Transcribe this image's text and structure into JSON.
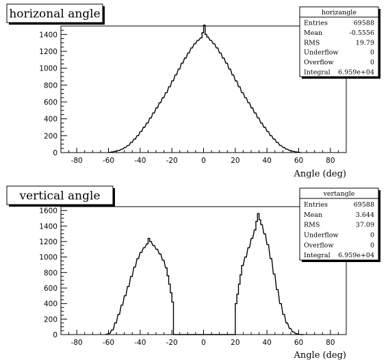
{
  "chart_data": [
    {
      "type": "bar",
      "title": "horizonal angle",
      "xlabel": "Angle (deg)",
      "ylabel": "",
      "xlim": [
        -90,
        90
      ],
      "ylim": [
        0,
        1500
      ],
      "x_ticks": [
        -80,
        -60,
        -40,
        -20,
        0,
        20,
        40,
        60,
        80
      ],
      "y_ticks": [
        0,
        200,
        400,
        600,
        800,
        1000,
        1200,
        1400
      ],
      "bin_width": 1,
      "bins": [
        [
          -60,
          2
        ],
        [
          -58,
          8
        ],
        [
          -56,
          15
        ],
        [
          -54,
          25
        ],
        [
          -52,
          40
        ],
        [
          -50,
          60
        ],
        [
          -48,
          85
        ],
        [
          -46,
          120
        ],
        [
          -44,
          160
        ],
        [
          -42,
          200
        ],
        [
          -40,
          250
        ],
        [
          -38,
          300
        ],
        [
          -36,
          350
        ],
        [
          -34,
          410
        ],
        [
          -32,
          470
        ],
        [
          -30,
          530
        ],
        [
          -28,
          590
        ],
        [
          -26,
          650
        ],
        [
          -24,
          710
        ],
        [
          -22,
          780
        ],
        [
          -20,
          850
        ],
        [
          -18,
          920
        ],
        [
          -16,
          990
        ],
        [
          -14,
          1060
        ],
        [
          -12,
          1120
        ],
        [
          -10,
          1180
        ],
        [
          -8,
          1240
        ],
        [
          -6,
          1290
        ],
        [
          -4,
          1330
        ],
        [
          -2,
          1360
        ],
        [
          -1,
          1420
        ],
        [
          0,
          1510
        ],
        [
          1,
          1400
        ],
        [
          2,
          1370
        ],
        [
          4,
          1330
        ],
        [
          6,
          1290
        ],
        [
          8,
          1240
        ],
        [
          10,
          1180
        ],
        [
          12,
          1120
        ],
        [
          14,
          1060
        ],
        [
          16,
          990
        ],
        [
          18,
          920
        ],
        [
          20,
          850
        ],
        [
          22,
          780
        ],
        [
          24,
          710
        ],
        [
          26,
          650
        ],
        [
          28,
          590
        ],
        [
          30,
          530
        ],
        [
          32,
          470
        ],
        [
          34,
          410
        ],
        [
          36,
          350
        ],
        [
          38,
          300
        ],
        [
          40,
          250
        ],
        [
          42,
          200
        ],
        [
          44,
          160
        ],
        [
          46,
          120
        ],
        [
          48,
          85
        ],
        [
          50,
          60
        ],
        [
          52,
          40
        ],
        [
          54,
          25
        ],
        [
          56,
          15
        ],
        [
          58,
          8
        ],
        [
          60,
          2
        ]
      ],
      "stats": {
        "name": "horizangle",
        "rows": [
          [
            "Entries",
            "69588"
          ],
          [
            "Mean",
            "-0.5556"
          ],
          [
            "RMS",
            "19.79"
          ],
          [
            "Underflow",
            "0"
          ],
          [
            "Overflow",
            "0"
          ],
          [
            "Integral",
            "6.959e+04"
          ]
        ]
      }
    },
    {
      "type": "bar",
      "title": "vertical angle",
      "xlabel": "Angle (deg)",
      "ylabel": "",
      "xlim": [
        -90,
        90
      ],
      "ylim": [
        0,
        1650
      ],
      "x_ticks": [
        -80,
        -60,
        -40,
        -20,
        0,
        20,
        40,
        60,
        80
      ],
      "y_ticks": [
        0,
        200,
        400,
        600,
        800,
        1000,
        1200,
        1400,
        1600
      ],
      "bin_width": 1,
      "bins": [
        [
          -62,
          2
        ],
        [
          -60,
          15
        ],
        [
          -58,
          60
        ],
        [
          -56,
          150
        ],
        [
          -54,
          260
        ],
        [
          -52,
          380
        ],
        [
          -50,
          500
        ],
        [
          -48,
          620
        ],
        [
          -46,
          750
        ],
        [
          -44,
          870
        ],
        [
          -42,
          980
        ],
        [
          -40,
          1060
        ],
        [
          -38,
          1120
        ],
        [
          -36,
          1170
        ],
        [
          -35,
          1240
        ],
        [
          -34,
          1200
        ],
        [
          -32,
          1150
        ],
        [
          -30,
          1100
        ],
        [
          -28,
          1040
        ],
        [
          -26,
          960
        ],
        [
          -24,
          860
        ],
        [
          -23,
          760
        ],
        [
          -22,
          650
        ],
        [
          -21,
          540
        ],
        [
          -20,
          420
        ],
        [
          -19,
          0
        ],
        [
          19,
          0
        ],
        [
          20,
          400
        ],
        [
          21,
          520
        ],
        [
          22,
          650
        ],
        [
          23,
          770
        ],
        [
          24,
          890
        ],
        [
          26,
          1000
        ],
        [
          28,
          1120
        ],
        [
          30,
          1240
        ],
        [
          32,
          1350
        ],
        [
          33,
          1460
        ],
        [
          34,
          1560
        ],
        [
          35,
          1480
        ],
        [
          36,
          1420
        ],
        [
          38,
          1300
        ],
        [
          40,
          1160
        ],
        [
          42,
          980
        ],
        [
          44,
          780
        ],
        [
          46,
          580
        ],
        [
          48,
          400
        ],
        [
          50,
          260
        ],
        [
          52,
          150
        ],
        [
          54,
          80
        ],
        [
          56,
          35
        ],
        [
          58,
          12
        ],
        [
          60,
          2
        ],
        [
          62,
          0
        ]
      ],
      "stats": {
        "name": "vertangle",
        "rows": [
          [
            "Entries",
            "69588"
          ],
          [
            "Mean",
            "3.644"
          ],
          [
            "RMS",
            "37.09"
          ],
          [
            "Underflow",
            "0"
          ],
          [
            "Overflow",
            "0"
          ],
          [
            "Integral",
            "6.959e+04"
          ]
        ]
      }
    }
  ]
}
